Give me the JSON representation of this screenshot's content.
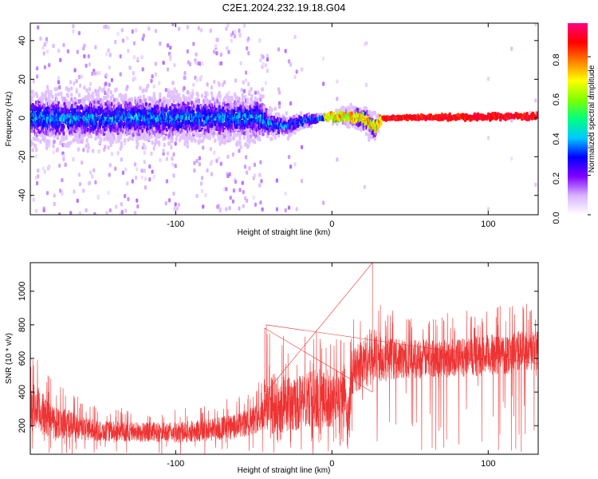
{
  "chart_data": [
    {
      "type": "heatmap",
      "title": "C2E1.2024.232.19.18.G04",
      "xlabel": "Height of straight line (km)",
      "ylabel": "Frequency (Hz)",
      "xlim": [
        -193,
        132
      ],
      "ylim": [
        -50,
        49
      ],
      "x_ticks": [
        -100,
        0,
        100
      ],
      "x_tick_labels": [
        "-100",
        "0",
        "100"
      ],
      "y_ticks": [
        -40,
        -20,
        0,
        20,
        40
      ],
      "y_tick_labels": [
        "-40",
        "-20",
        "0",
        "20",
        "40"
      ],
      "colorbar": {
        "label": "Normalized spectral amplitude",
        "range": [
          0,
          0.97
        ],
        "ticks": [
          0.0,
          0.2,
          0.4,
          0.6,
          0.8
        ],
        "tick_labels": [
          "0.0",
          "0.2",
          "0.4",
          "0.6",
          "0.8"
        ],
        "colormap": [
          "#ffffff",
          "#d9b3ff",
          "#8000ff",
          "#0000ff",
          "#00c8ff",
          "#00ff80",
          "#80ff00",
          "#ffff00",
          "#ff8000",
          "#ff0000",
          "#ff0080"
        ]
      },
      "profile": [
        {
          "x": -193,
          "center": 0,
          "spread": 14
        },
        {
          "x": -45,
          "center": 0,
          "spread": 13
        },
        {
          "x": -40,
          "center": -3,
          "spread": 8
        },
        {
          "x": -30,
          "center": -4,
          "spread": 6
        },
        {
          "x": -15,
          "center": -1,
          "spread": 4
        },
        {
          "x": -5,
          "center": 0,
          "spread": 2
        },
        {
          "x": 5,
          "center": 1,
          "spread": 4
        },
        {
          "x": 20,
          "center": 0,
          "spread": 8
        },
        {
          "x": 28,
          "center": -5,
          "spread": 8
        },
        {
          "x": 32,
          "center": 0,
          "spread": 1
        },
        {
          "x": 132,
          "center": 1,
          "spread": 2
        }
      ]
    },
    {
      "type": "line",
      "xlabel": "Height of straight line (km)",
      "ylabel": "SNR (10 * v/v)",
      "xlim": [
        -193,
        132
      ],
      "ylim": [
        30,
        1170
      ],
      "x_ticks": [
        -100,
        0,
        100
      ],
      "x_tick_labels": [
        "-100",
        "0",
        "100"
      ],
      "y_ticks": [
        200,
        400,
        600,
        800,
        1000
      ],
      "y_tick_labels": [
        "200",
        "400",
        "600",
        "800",
        "1000"
      ],
      "color": "#ee3333",
      "envelope": [
        {
          "x": -193,
          "base": 280,
          "hi": 540
        },
        {
          "x": -180,
          "base": 200,
          "hi": 380
        },
        {
          "x": -150,
          "base": 150,
          "hi": 250
        },
        {
          "x": -100,
          "base": 140,
          "hi": 240
        },
        {
          "x": -60,
          "base": 170,
          "hi": 300
        },
        {
          "x": -45,
          "base": 230,
          "hi": 380
        },
        {
          "x": -40,
          "base": 290,
          "hi": 650
        },
        {
          "x": -35,
          "base": 230,
          "hi": 560
        },
        {
          "x": -20,
          "base": 300,
          "hi": 560
        },
        {
          "x": -10,
          "base": 310,
          "hi": 600
        },
        {
          "x": 0,
          "base": 300,
          "hi": 560
        },
        {
          "x": 8,
          "base": 390,
          "hi": 620
        },
        {
          "x": 10,
          "base": 120,
          "hi": 380
        },
        {
          "x": 13,
          "base": 480,
          "hi": 700
        },
        {
          "x": 25,
          "base": 560,
          "hi": 850
        },
        {
          "x": 40,
          "base": 560,
          "hi": 760
        },
        {
          "x": 80,
          "base": 570,
          "hi": 760
        },
        {
          "x": 110,
          "base": 590,
          "hi": 800
        },
        {
          "x": 132,
          "base": 620,
          "hi": 830
        }
      ]
    }
  ]
}
